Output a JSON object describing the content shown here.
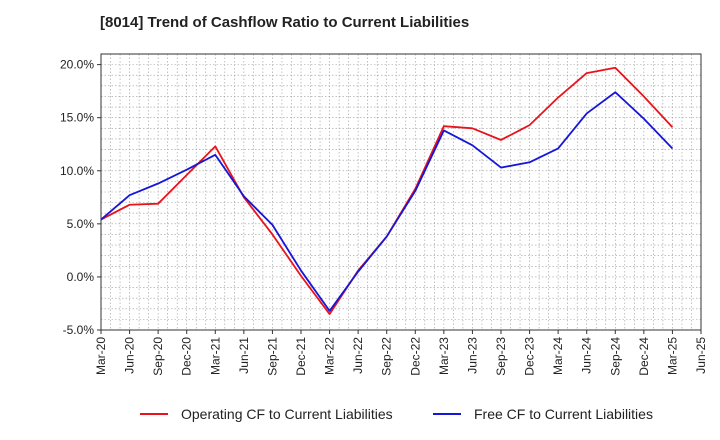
{
  "chart_data": {
    "type": "line",
    "title": "[8014]  Trend of Cashflow Ratio to Current Liabilities",
    "xlabel": "",
    "ylabel": "",
    "x_ticks": [
      "Mar-20",
      "Jun-20",
      "Sep-20",
      "Dec-20",
      "Mar-21",
      "Jun-21",
      "Sep-21",
      "Dec-21",
      "Mar-22",
      "Jun-22",
      "Sep-22",
      "Dec-22",
      "Mar-23",
      "Jun-23",
      "Sep-23",
      "Dec-23",
      "Mar-24",
      "Jun-24",
      "Sep-24",
      "Dec-24",
      "Mar-25",
      "Jun-25"
    ],
    "y_ticks": [
      "20.0%",
      "15.0%",
      "10.0%",
      "5.0%",
      "0.0%",
      "-5.0%"
    ],
    "y_tick_values": [
      20,
      15,
      10,
      5,
      0,
      -5
    ],
    "ylim": [
      -5,
      21
    ],
    "grid": true,
    "legend_position": "bottom",
    "series": [
      {
        "name": "Operating CF to Current Liabilities",
        "color": "#e8141c",
        "x": [
          "Mar-20",
          "Jun-20",
          "Sep-20",
          "Dec-20",
          "Mar-21",
          "Jun-21",
          "Sep-21",
          "Dec-21",
          "Mar-22",
          "Jun-22",
          "Sep-22",
          "Dec-22",
          "Mar-23",
          "Jun-23",
          "Sep-23",
          "Dec-23",
          "Mar-24",
          "Jun-24",
          "Sep-24",
          "Dec-24",
          "Mar-25"
        ],
        "values": [
          5.4,
          6.8,
          6.9,
          9.6,
          12.3,
          7.5,
          4.0,
          0.1,
          -3.5,
          0.6,
          3.8,
          8.3,
          14.2,
          14.0,
          12.9,
          14.3,
          16.9,
          19.2,
          19.7,
          17.0,
          14.1
        ]
      },
      {
        "name": "Free CF to Current Liabilities",
        "color": "#1616d8",
        "x": [
          "Mar-20",
          "Jun-20",
          "Sep-20",
          "Dec-20",
          "Mar-21",
          "Jun-21",
          "Sep-21",
          "Dec-21",
          "Mar-22",
          "Jun-22",
          "Sep-22",
          "Dec-22",
          "Mar-23",
          "Jun-23",
          "Sep-23",
          "Dec-23",
          "Mar-24",
          "Jun-24",
          "Sep-24",
          "Dec-24",
          "Mar-25"
        ],
        "values": [
          5.4,
          7.7,
          8.8,
          10.1,
          11.5,
          7.6,
          4.9,
          0.6,
          -3.2,
          0.5,
          3.8,
          8.1,
          13.8,
          12.4,
          10.3,
          10.8,
          12.1,
          15.4,
          17.4,
          14.9,
          12.1
        ]
      }
    ]
  }
}
